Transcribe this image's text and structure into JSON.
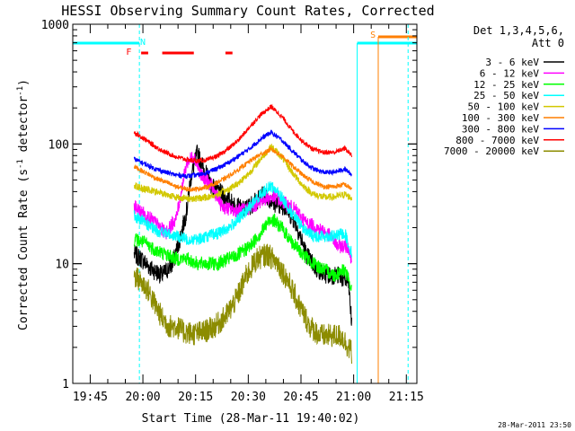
{
  "chart_data": {
    "type": "line",
    "title": "HESSI Observing Summary Count Rates, Corrected",
    "xlabel": "Start Time (28-Mar-11 19:40:02)",
    "ylabel": "Corrected Count Rate (s⁻¹ detector⁻¹)",
    "ylabel_main": "Corrected Count Rate (s",
    "ylabel_sup1": "-1",
    "ylabel_mid": " detector",
    "ylabel_sup2": "-1",
    "ylabel_end": ")",
    "x_unit": "minutes",
    "xlim": [
      "19:40:02",
      "21:18:00"
    ],
    "ylim": [
      1,
      1000
    ],
    "y_scale": "log",
    "x_ticks": [
      "19:45",
      "20:00",
      "20:15",
      "20:30",
      "20:45",
      "21:00",
      "21:15"
    ],
    "y_ticks": [
      "1",
      "10",
      "100",
      "1000"
    ],
    "timestamp": "28-Mar-2011 23:50",
    "legend_header": [
      "Det 1,3,4,5,6,",
      "Att 0"
    ],
    "legend_position": "right",
    "flags": [
      {
        "label": "F",
        "color": "#ff0000"
      },
      {
        "label": "N",
        "color": "#00ffff"
      },
      {
        "label": "S",
        "color": "#ff7f00"
      }
    ],
    "series": [
      {
        "name": "3 - 6 keV",
        "color": "#000000",
        "x": [
          0,
          2,
          5,
          8,
          11,
          13,
          15,
          16,
          18,
          20,
          22,
          25,
          28,
          31,
          34,
          37,
          40,
          43,
          46,
          49,
          52,
          55,
          58,
          61,
          62
        ],
        "y": [
          12,
          11,
          9,
          8,
          10,
          16,
          28,
          50,
          85,
          60,
          45,
          38,
          32,
          28,
          32,
          38,
          32,
          30,
          22,
          12,
          9,
          8,
          8,
          7,
          3
        ]
      },
      {
        "name": "6 - 12 keV",
        "color": "#ff00ff",
        "x": [
          0,
          3,
          6,
          9,
          12,
          15,
          17,
          19,
          22,
          25,
          28,
          31,
          34,
          37,
          40,
          43,
          46,
          49,
          52,
          55,
          58,
          61,
          62
        ],
        "y": [
          30,
          26,
          22,
          18,
          24,
          70,
          80,
          55,
          45,
          30,
          28,
          28,
          30,
          35,
          36,
          32,
          28,
          22,
          20,
          18,
          14,
          14,
          10
        ]
      },
      {
        "name": "12 - 25 keV",
        "color": "#00ff00",
        "x": [
          0,
          3,
          6,
          9,
          12,
          15,
          18,
          21,
          24,
          27,
          30,
          33,
          36,
          39,
          42,
          45,
          48,
          51,
          54,
          57,
          60,
          62
        ],
        "y": [
          16,
          15,
          13,
          12,
          11,
          11,
          10,
          10,
          10,
          11,
          12,
          14,
          18,
          24,
          20,
          15,
          12,
          10,
          9,
          8,
          9,
          6
        ]
      },
      {
        "name": "25 - 50 keV",
        "color": "#00ffff",
        "x": [
          0,
          3,
          6,
          9,
          12,
          15,
          18,
          21,
          24,
          27,
          30,
          33,
          36,
          39,
          42,
          45,
          48,
          51,
          54,
          57,
          60,
          62
        ],
        "y": [
          25,
          22,
          19,
          18,
          17,
          16,
          16,
          17,
          18,
          20,
          24,
          30,
          38,
          45,
          36,
          26,
          20,
          17,
          17,
          17,
          18,
          12
        ]
      },
      {
        "name": "50 - 100 keV",
        "color": "#d2c800",
        "x": [
          0,
          3,
          6,
          9,
          12,
          15,
          18,
          21,
          24,
          27,
          30,
          33,
          36,
          39,
          42,
          45,
          48,
          51,
          54,
          57,
          60,
          62
        ],
        "y": [
          45,
          42,
          40,
          38,
          36,
          35,
          35,
          36,
          38,
          42,
          48,
          58,
          75,
          95,
          78,
          58,
          45,
          38,
          36,
          36,
          38,
          35
        ]
      },
      {
        "name": "100 - 300 keV",
        "color": "#ff7f00",
        "x": [
          0,
          3,
          6,
          9,
          12,
          15,
          18,
          21,
          24,
          27,
          30,
          33,
          36,
          39,
          42,
          45,
          48,
          51,
          54,
          57,
          60,
          62
        ],
        "y": [
          65,
          58,
          52,
          48,
          44,
          42,
          42,
          44,
          48,
          54,
          62,
          72,
          82,
          90,
          80,
          66,
          55,
          48,
          44,
          44,
          46,
          42
        ]
      },
      {
        "name": "300 - 800 keV",
        "color": "#0000ff",
        "x": [
          0,
          3,
          6,
          9,
          12,
          15,
          18,
          21,
          24,
          27,
          30,
          33,
          36,
          39,
          42,
          45,
          48,
          51,
          54,
          57,
          60,
          62
        ],
        "y": [
          75,
          68,
          62,
          58,
          55,
          54,
          55,
          58,
          63,
          70,
          80,
          92,
          110,
          125,
          108,
          88,
          72,
          62,
          58,
          58,
          62,
          55
        ]
      },
      {
        "name": "800 - 7000 keV",
        "color": "#ff0000",
        "x": [
          0,
          3,
          6,
          9,
          12,
          15,
          18,
          21,
          24,
          27,
          30,
          33,
          36,
          39,
          42,
          45,
          48,
          51,
          54,
          57,
          60,
          62
        ],
        "y": [
          125,
          110,
          95,
          85,
          78,
          74,
          72,
          74,
          80,
          92,
          110,
          140,
          175,
          205,
          170,
          130,
          105,
          90,
          85,
          85,
          92,
          80
        ]
      },
      {
        "name": "7000 - 20000 keV",
        "color": "#8c8c00",
        "x": [
          0,
          2,
          4,
          6,
          8,
          10,
          12,
          14,
          17,
          20,
          23,
          26,
          29,
          32,
          35,
          38,
          41,
          44,
          47,
          50,
          53,
          56,
          59,
          62
        ],
        "y": [
          8,
          7,
          6,
          4.5,
          3.5,
          3,
          3,
          2.7,
          2.6,
          2.7,
          3,
          3.6,
          5,
          8,
          11,
          12,
          10,
          7,
          4.5,
          3,
          2.5,
          2.5,
          2.5,
          1.8
        ]
      }
    ]
  }
}
